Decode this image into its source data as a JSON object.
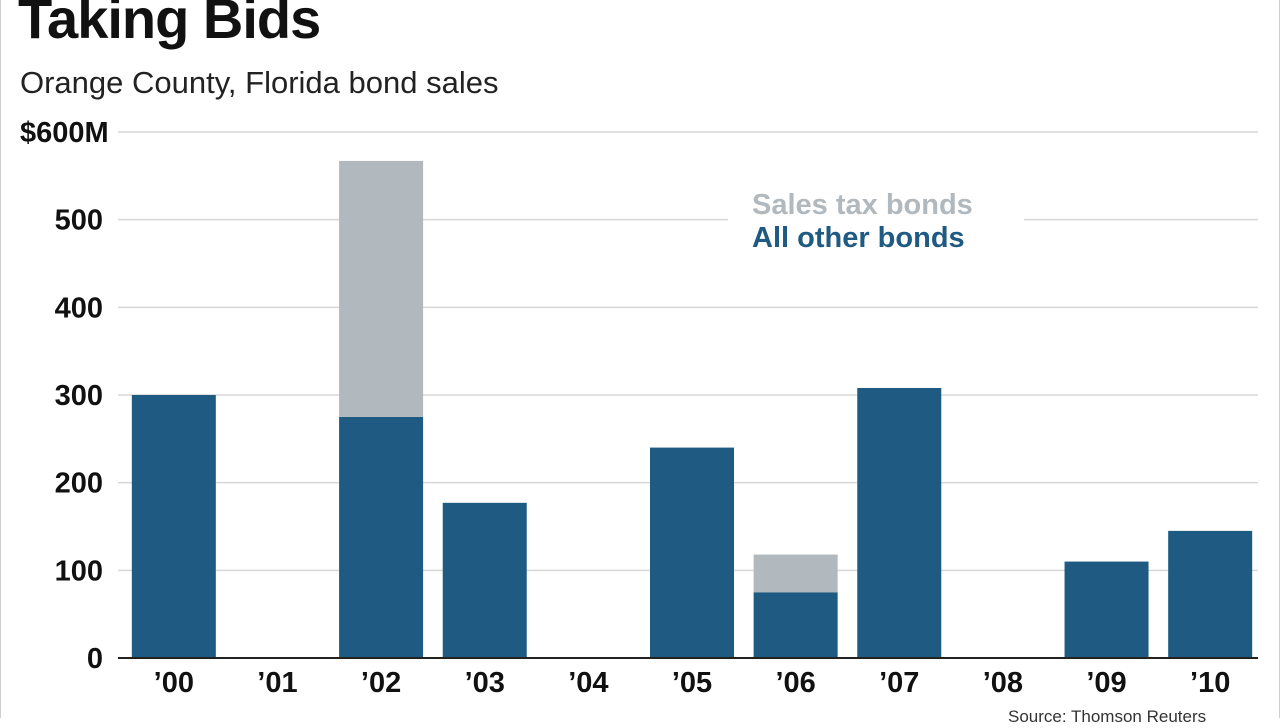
{
  "title": "Taking Bids",
  "subtitle": "Orange County, Florida bond sales",
  "source": "Source: Thomson Reuters",
  "colors": {
    "sales_tax": "#b1b8be",
    "other": "#1f5a82",
    "grid": "#d7d7d7",
    "axis": "#222222"
  },
  "chart_data": {
    "type": "bar",
    "stacked": true,
    "categories": [
      "’00",
      "’01",
      "’02",
      "’03",
      "’04",
      "’05",
      "’06",
      "’07",
      "’08",
      "’09",
      "’10"
    ],
    "series": [
      {
        "name": "All other bonds",
        "values": [
          300,
          0,
          275,
          177,
          0,
          240,
          75,
          308,
          0,
          110,
          145
        ]
      },
      {
        "name": "Sales tax bonds",
        "values": [
          0,
          0,
          292,
          0,
          0,
          0,
          43,
          0,
          0,
          0,
          0
        ]
      }
    ],
    "y_tick_labels": [
      "0",
      "100",
      "200",
      "300",
      "400",
      "500",
      "$600M"
    ],
    "y_ticks": [
      0,
      100,
      200,
      300,
      400,
      500,
      600
    ],
    "ylim": [
      0,
      600
    ],
    "grid": true,
    "legend_position": "top-right"
  }
}
